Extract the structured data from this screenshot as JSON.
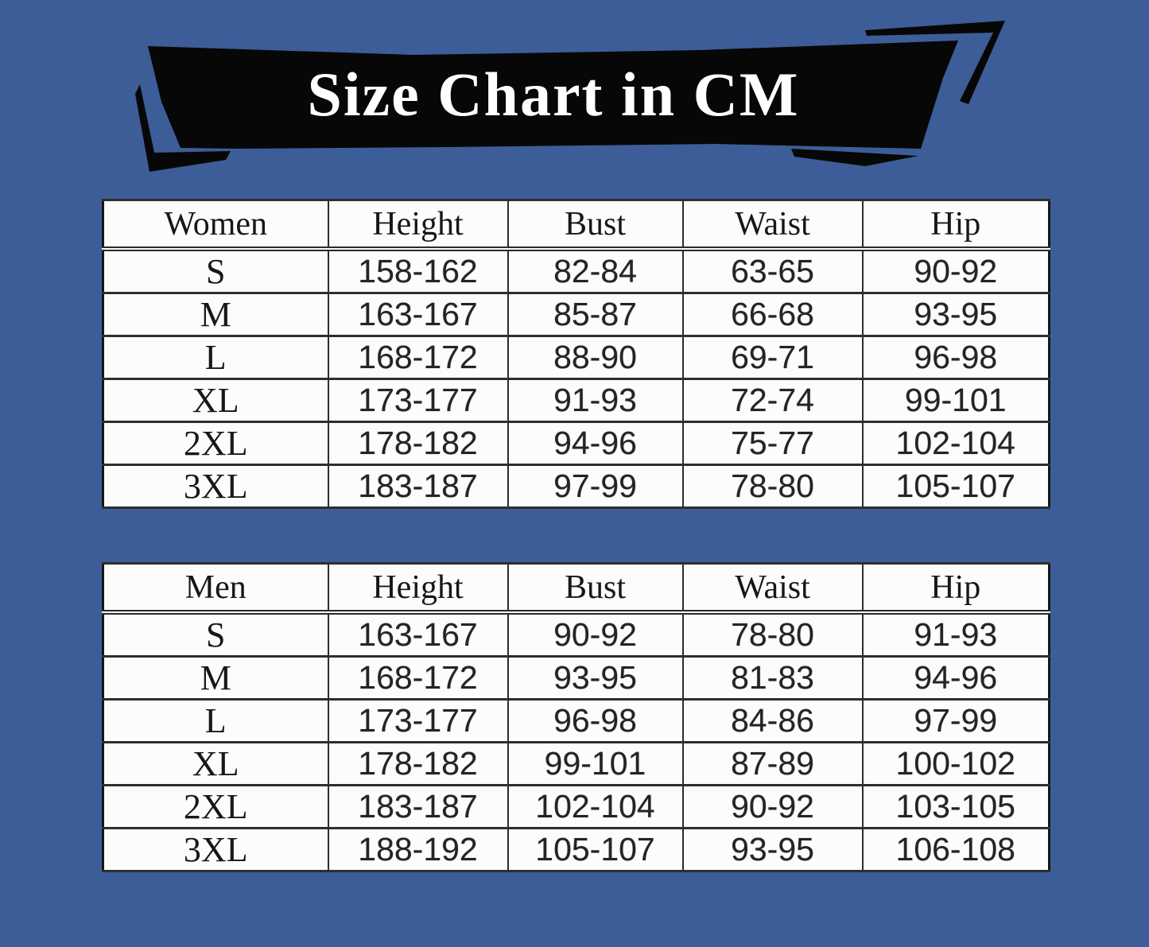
{
  "colors": {
    "page_background": "#3C5D98",
    "banner_black": "#070707",
    "banner_text": "#ffffff",
    "table_background": "#fcfcfb",
    "table_border": "#2c2c2c",
    "table_text": "#1c1c1c"
  },
  "banner": {
    "title": "Size Chart in CM"
  },
  "tables": [
    {
      "group": "women",
      "headers": [
        "Women",
        "Height",
        "Bust",
        "Waist",
        "Hip"
      ],
      "rows": [
        [
          "S",
          "158-162",
          "82-84",
          "63-65",
          "90-92"
        ],
        [
          "M",
          "163-167",
          "85-87",
          "66-68",
          "93-95"
        ],
        [
          "L",
          "168-172",
          "88-90",
          "69-71",
          "96-98"
        ],
        [
          "XL",
          "173-177",
          "91-93",
          "72-74",
          "99-101"
        ],
        [
          "2XL",
          "178-182",
          "94-96",
          "75-77",
          "102-104"
        ],
        [
          "3XL",
          "183-187",
          "97-99",
          "78-80",
          "105-107"
        ]
      ]
    },
    {
      "group": "men",
      "headers": [
        "Men",
        "Height",
        "Bust",
        "Waist",
        "Hip"
      ],
      "rows": [
        [
          "S",
          "163-167",
          "90-92",
          "78-80",
          "91-93"
        ],
        [
          "M",
          "168-172",
          "93-95",
          "81-83",
          "94-96"
        ],
        [
          "L",
          "173-177",
          "96-98",
          "84-86",
          "97-99"
        ],
        [
          "XL",
          "178-182",
          "99-101",
          "87-89",
          "100-102"
        ],
        [
          "2XL",
          "183-187",
          "102-104",
          "90-92",
          "103-105"
        ],
        [
          "3XL",
          "188-192",
          "105-107",
          "93-95",
          "106-108"
        ]
      ]
    }
  ]
}
